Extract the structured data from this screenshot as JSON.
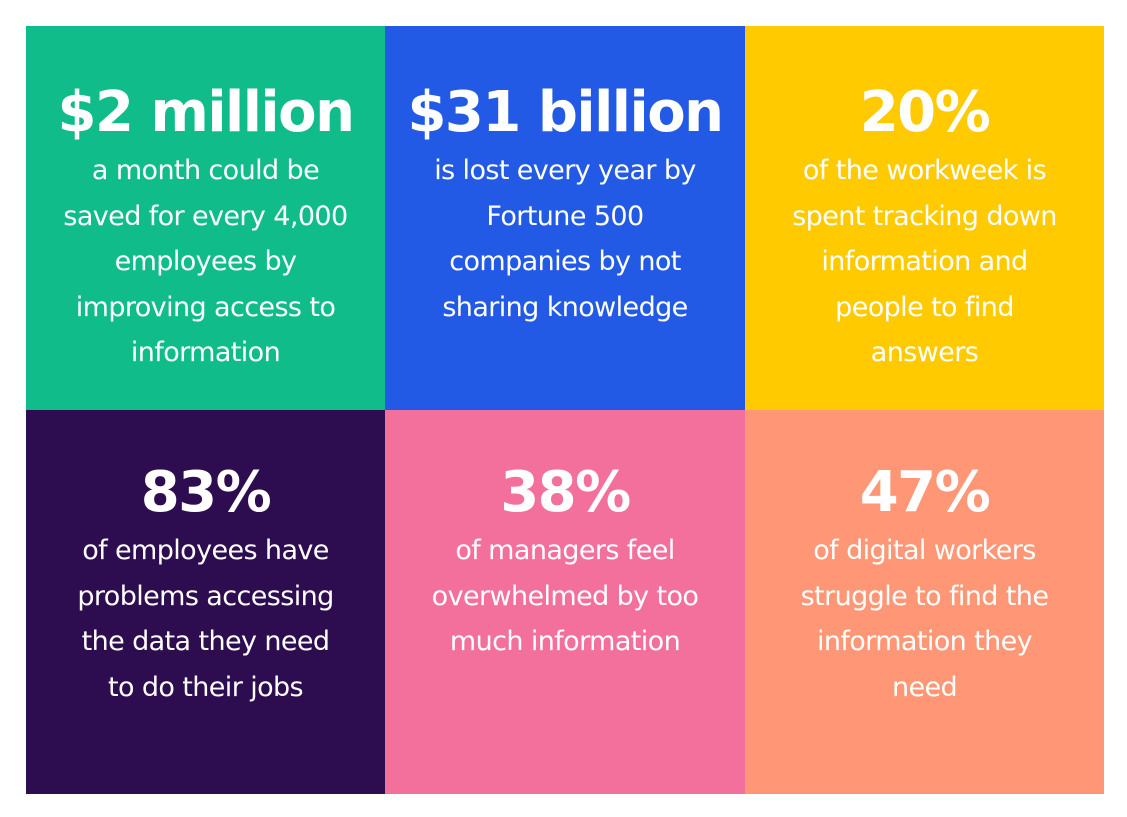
{
  "tiles": [
    {
      "headline": "$2 million",
      "color": "#10bd8a",
      "lines": [
        "a month could be",
        "saved for every 4,000",
        "employees by",
        "improving access to",
        "information"
      ]
    },
    {
      "headline": "$31 billion",
      "color": "#225ae5",
      "lines": [
        "is lost every year by",
        "Fortune 500",
        "companies by not",
        "sharing knowledge"
      ]
    },
    {
      "headline": "20%",
      "color": "#ffca00",
      "lines": [
        "of the workweek is",
        "spent tracking down",
        "information and",
        "people to find",
        "answers"
      ]
    },
    {
      "headline": "83%",
      "color": "#2e0c50",
      "lines": [
        "of employees have",
        "problems accessing",
        "the data they need",
        "to do their jobs"
      ]
    },
    {
      "headline": "38%",
      "color": "#f2709b",
      "lines": [
        "of managers feel",
        "overwhelmed by too",
        "much information"
      ]
    },
    {
      "headline": "47%",
      "color": "#ff9675",
      "lines": [
        "of digital workers",
        "struggle to find the",
        "information they",
        "need"
      ]
    }
  ]
}
